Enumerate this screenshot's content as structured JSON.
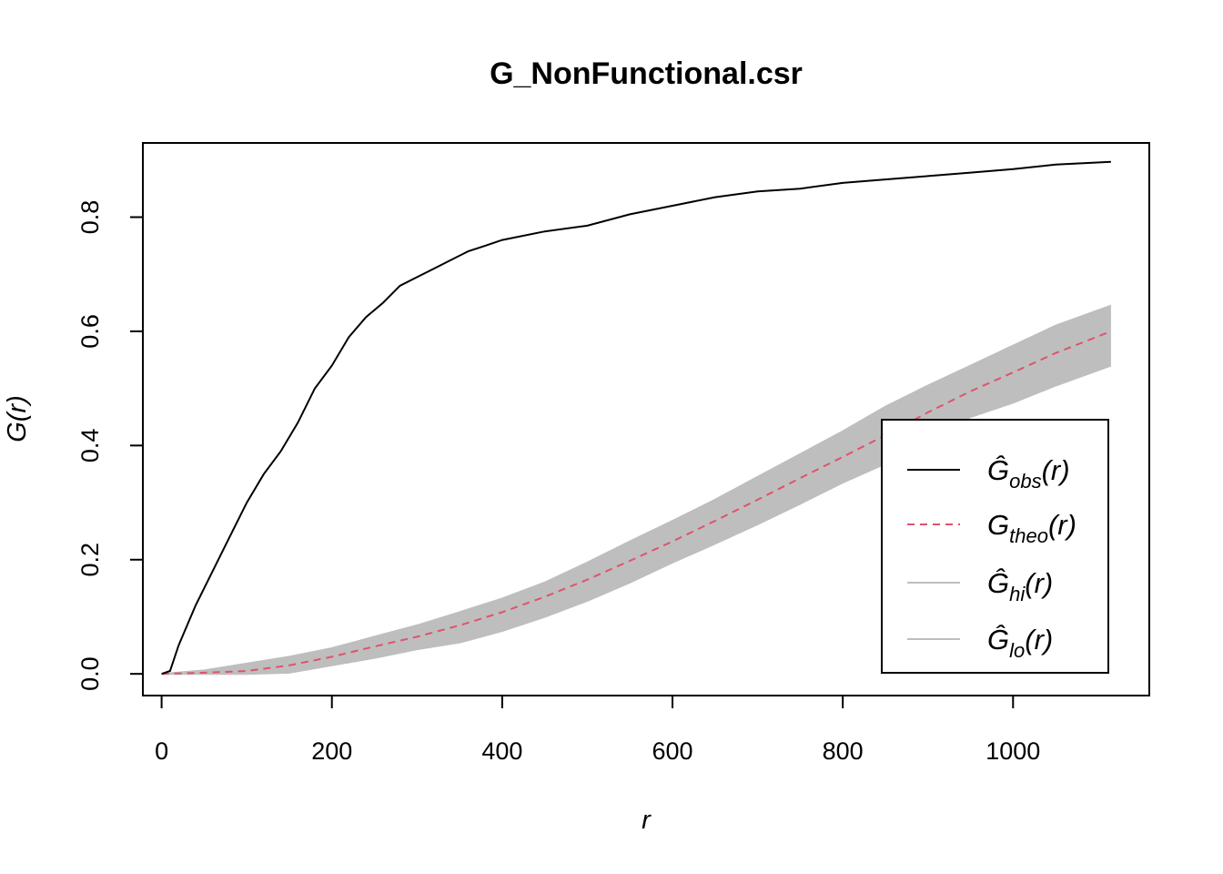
{
  "chart_data": {
    "type": "line",
    "title": "G_NonFunctional.csr",
    "xlabel": "r",
    "ylabel": "G(r)",
    "xlim": [
      -22,
      1160
    ],
    "ylim": [
      -0.038,
      0.93
    ],
    "x_ticks": [
      0,
      200,
      400,
      600,
      800,
      1000
    ],
    "y_ticks": [
      0.0,
      0.2,
      0.4,
      0.6,
      0.8
    ],
    "x_tick_labels": [
      "0",
      "200",
      "400",
      "600",
      "800",
      "1000"
    ],
    "y_tick_labels": [
      "0.0",
      "0.2",
      "0.4",
      "0.6",
      "0.8"
    ],
    "legend_position": "bottom-right",
    "legend": [
      {
        "base": "Ĝ",
        "sub": "obs",
        "tail": "(r)",
        "style": "solid",
        "color": "#000000"
      },
      {
        "base": "G",
        "sub": "theo",
        "tail": "(r)",
        "style": "dashed",
        "color": "#DF536B"
      },
      {
        "base": "Ĝ",
        "sub": "hi",
        "tail": "(r)",
        "style": "solid",
        "color": "#BEBEBE"
      },
      {
        "base": "Ĝ",
        "sub": "lo",
        "tail": "(r)",
        "style": "solid",
        "color": "#BEBEBE"
      }
    ],
    "series": [
      {
        "name": "obs",
        "color": "#000000",
        "style": "solid",
        "x": [
          0,
          10,
          20,
          40,
          60,
          80,
          100,
          120,
          140,
          160,
          180,
          200,
          220,
          240,
          260,
          280,
          300,
          320,
          340,
          360,
          380,
          400,
          450,
          500,
          550,
          600,
          650,
          700,
          750,
          800,
          850,
          900,
          950,
          1000,
          1050,
          1115
        ],
        "y": [
          0,
          0.005,
          0.05,
          0.12,
          0.18,
          0.24,
          0.3,
          0.35,
          0.39,
          0.44,
          0.5,
          0.54,
          0.59,
          0.625,
          0.65,
          0.68,
          0.695,
          0.71,
          0.725,
          0.74,
          0.75,
          0.76,
          0.775,
          0.785,
          0.805,
          0.82,
          0.835,
          0.845,
          0.85,
          0.86,
          0.866,
          0.872,
          0.878,
          0.884,
          0.892,
          0.897
        ]
      },
      {
        "name": "theo",
        "color": "#DF536B",
        "style": "dashed",
        "x": [
          0,
          50,
          100,
          150,
          200,
          250,
          300,
          350,
          400,
          450,
          500,
          550,
          600,
          650,
          700,
          750,
          800,
          850,
          900,
          950,
          1000,
          1050,
          1115
        ],
        "y": [
          0,
          0.002,
          0.005,
          0.015,
          0.03,
          0.048,
          0.065,
          0.085,
          0.108,
          0.135,
          0.165,
          0.198,
          0.232,
          0.268,
          0.305,
          0.343,
          0.38,
          0.418,
          0.458,
          0.495,
          0.528,
          0.562,
          0.6
        ]
      },
      {
        "name": "hi",
        "color": "#BEBEBE",
        "style": "solid",
        "x": [
          0,
          50,
          100,
          150,
          200,
          250,
          300,
          350,
          400,
          450,
          500,
          550,
          600,
          650,
          700,
          750,
          800,
          850,
          900,
          950,
          1000,
          1050,
          1115
        ],
        "y": [
          0,
          0.006,
          0.018,
          0.03,
          0.045,
          0.065,
          0.085,
          0.108,
          0.132,
          0.16,
          0.195,
          0.232,
          0.268,
          0.305,
          0.345,
          0.385,
          0.425,
          0.468,
          0.505,
          0.54,
          0.575,
          0.61,
          0.645
        ]
      },
      {
        "name": "lo",
        "color": "#BEBEBE",
        "style": "solid",
        "x": [
          0,
          50,
          100,
          150,
          200,
          250,
          300,
          350,
          400,
          450,
          500,
          550,
          600,
          650,
          700,
          750,
          800,
          850,
          900,
          950,
          1000,
          1050,
          1115
        ],
        "y": [
          0,
          0,
          0,
          0.002,
          0.015,
          0.028,
          0.043,
          0.055,
          0.075,
          0.1,
          0.128,
          0.16,
          0.195,
          0.228,
          0.262,
          0.298,
          0.335,
          0.368,
          0.41,
          0.45,
          0.475,
          0.505,
          0.54
        ]
      }
    ]
  }
}
